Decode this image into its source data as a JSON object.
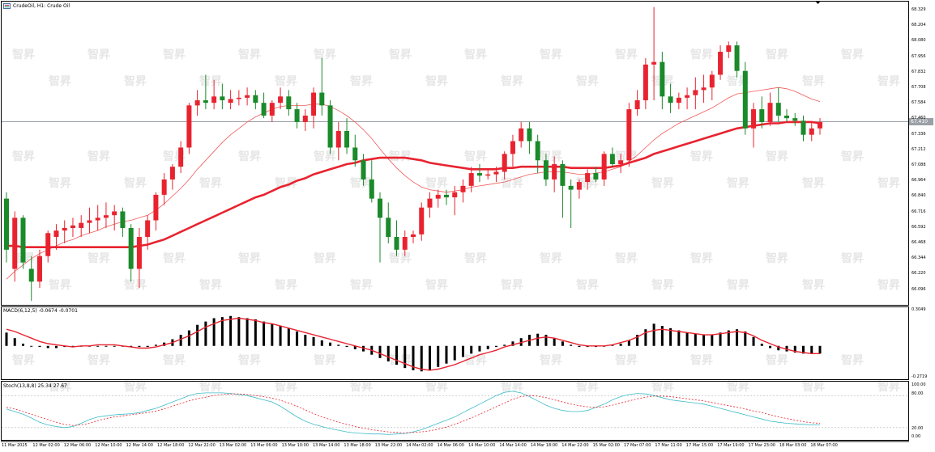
{
  "window": {
    "title": "CrudeOil, H1:  Crude Oil",
    "icon": "chart-window-icon",
    "current_price_tag": "67.410",
    "watermark_text": "智昇"
  },
  "panes": {
    "main": {
      "y_ticks": [
        "68.329",
        "68.204",
        "68.080",
        "67.956",
        "67.832",
        "67.708",
        "67.584",
        "67.460",
        "67.336",
        "67.212",
        "67.088",
        "66.964",
        "66.840",
        "66.716",
        "66.592",
        "66.468",
        "66.344",
        "66.220",
        "66.096"
      ]
    },
    "macd": {
      "label": "MACD(6,12,5) -0.0674 -0.0701",
      "y_ticks": [
        "0.3049",
        "-0.2719"
      ]
    },
    "stoch": {
      "label": "Stoch(13,8,8) 25.34 27.67",
      "y_ticks": [
        "100.00",
        "80.00",
        "20.00",
        "0.00"
      ]
    }
  },
  "time_axis": [
    "11 Mar 2025",
    "12 Mar 02:00",
    "12 Mar 06:00",
    "12 Mar 10:00",
    "12 Mar 14:00",
    "12 Mar 18:00",
    "12 Mar 22:00",
    "13 Mar 02:00",
    "13 Mar 06:00",
    "13 Mar 10:00",
    "13 Mar 14:00",
    "13 Mar 18:00",
    "13 Mar 22:00",
    "14 Mar 02:00",
    "14 Mar 06:00",
    "14 Mar 10:00",
    "14 Mar 14:00",
    "14 Mar 18:00",
    "14 Mar 22:00",
    "15 Mar 02:00",
    "17 Mar 07:00",
    "17 Mar 11:00",
    "17 Mar 15:00",
    "17 Mar 19:00",
    "17 Mar 23:00",
    "18 Mar 03:00",
    "18 Mar 07:00"
  ],
  "colors": {
    "bull": "#e8232f",
    "bear": "#1a8a2a",
    "ma_slow": "#e8232f",
    "ma_fast": "#f05a5a",
    "macd_hist": "#000000",
    "macd_signal": "#e8232f",
    "stoch_main": "#3cbcc8",
    "stoch_signal": "#e8232f",
    "grid": "#000000",
    "current_price_line": "#9aa0a6"
  },
  "chart_data": [
    {
      "type": "candlestick",
      "title": "CrudeOil, H1",
      "ylim": [
        66.05,
        68.38
      ],
      "ma_slow_period_label": "",
      "candles": [
        [
          66.85,
          66.9,
          66.35,
          66.45
        ],
        [
          66.3,
          66.75,
          66.2,
          66.7
        ],
        [
          66.7,
          66.72,
          66.3,
          66.35
        ],
        [
          66.3,
          66.4,
          66.05,
          66.2
        ],
        [
          66.2,
          66.45,
          66.15,
          66.4
        ],
        [
          66.4,
          66.6,
          66.35,
          66.58
        ],
        [
          66.55,
          66.65,
          66.45,
          66.6
        ],
        [
          66.6,
          66.68,
          66.5,
          66.62
        ],
        [
          66.62,
          66.7,
          66.55,
          66.64
        ],
        [
          66.62,
          66.72,
          66.55,
          66.66
        ],
        [
          66.66,
          66.78,
          66.58,
          66.68
        ],
        [
          66.68,
          66.8,
          66.6,
          66.7
        ],
        [
          66.7,
          66.82,
          66.62,
          66.72
        ],
        [
          66.72,
          66.8,
          66.6,
          66.75
        ],
        [
          66.75,
          66.78,
          66.55,
          66.62
        ],
        [
          66.62,
          66.65,
          66.2,
          66.3
        ],
        [
          66.3,
          66.62,
          66.15,
          66.55
        ],
        [
          66.55,
          66.72,
          66.45,
          66.68
        ],
        [
          66.68,
          66.9,
          66.6,
          66.88
        ],
        [
          66.88,
          67.05,
          66.8,
          67.0
        ],
        [
          67.0,
          67.12,
          66.92,
          67.1
        ],
        [
          67.1,
          67.3,
          67.05,
          67.25
        ],
        [
          67.25,
          67.6,
          67.2,
          67.58
        ],
        [
          67.58,
          67.7,
          67.5,
          67.62
        ],
        [
          67.62,
          67.82,
          67.55,
          67.6
        ],
        [
          67.6,
          67.78,
          67.55,
          67.65
        ],
        [
          67.65,
          67.75,
          67.55,
          67.62
        ],
        [
          67.6,
          67.7,
          67.55,
          67.63
        ],
        [
          67.63,
          67.7,
          67.58,
          67.64
        ],
        [
          67.64,
          67.72,
          67.58,
          67.66
        ],
        [
          67.66,
          67.7,
          67.55,
          67.6
        ],
        [
          67.6,
          67.68,
          67.48,
          67.5
        ],
        [
          67.5,
          67.62,
          67.45,
          67.6
        ],
        [
          67.6,
          67.72,
          67.55,
          67.65
        ],
        [
          67.65,
          67.7,
          67.5,
          67.55
        ],
        [
          67.55,
          67.6,
          67.4,
          67.45
        ],
        [
          67.45,
          67.55,
          67.38,
          67.5
        ],
        [
          67.5,
          67.72,
          67.4,
          67.68
        ],
        [
          67.68,
          67.95,
          67.5,
          67.58
        ],
        [
          67.58,
          67.62,
          67.2,
          67.25
        ],
        [
          67.25,
          67.45,
          67.15,
          67.38
        ],
        [
          67.38,
          67.48,
          67.2,
          67.25
        ],
        [
          67.25,
          67.35,
          67.1,
          67.15
        ],
        [
          67.15,
          67.2,
          66.95,
          67.0
        ],
        [
          67.0,
          67.15,
          66.82,
          66.85
        ],
        [
          66.85,
          66.9,
          66.35,
          66.7
        ],
        [
          66.7,
          66.82,
          66.5,
          66.55
        ],
        [
          66.55,
          66.68,
          66.4,
          66.45
        ],
        [
          66.45,
          66.6,
          66.4,
          66.55
        ],
        [
          66.55,
          66.6,
          66.5,
          66.57
        ],
        [
          66.57,
          66.82,
          66.52,
          66.78
        ],
        [
          66.78,
          66.9,
          66.7,
          66.85
        ],
        [
          66.85,
          66.92,
          66.78,
          66.88
        ],
        [
          66.88,
          66.92,
          66.8,
          66.86
        ],
        [
          66.86,
          66.95,
          66.72,
          66.9
        ],
        [
          66.9,
          67.0,
          66.82,
          66.95
        ],
        [
          66.95,
          67.1,
          66.9,
          67.05
        ],
        [
          67.05,
          67.12,
          66.98,
          67.03
        ],
        [
          67.03,
          67.08,
          67.0,
          67.04
        ],
        [
          67.04,
          67.1,
          66.98,
          67.06
        ],
        [
          67.06,
          67.22,
          67.0,
          67.2
        ],
        [
          67.2,
          67.35,
          67.1,
          67.3
        ],
        [
          67.3,
          67.45,
          67.25,
          67.4
        ],
        [
          67.4,
          67.45,
          67.2,
          67.3
        ],
        [
          67.3,
          67.35,
          67.05,
          67.15
        ],
        [
          67.15,
          67.2,
          66.95,
          67.0
        ],
        [
          67.0,
          67.18,
          66.9,
          67.12
        ],
        [
          67.12,
          67.15,
          66.7,
          66.95
        ],
        [
          66.95,
          67.0,
          66.62,
          66.92
        ],
        [
          66.92,
          67.0,
          66.85,
          66.98
        ],
        [
          66.98,
          67.08,
          66.92,
          67.05
        ],
        [
          67.05,
          67.1,
          66.98,
          67.0
        ],
        [
          67.0,
          67.22,
          66.95,
          67.2
        ],
        [
          67.2,
          67.25,
          67.1,
          67.12
        ],
        [
          67.12,
          67.2,
          67.05,
          67.15
        ],
        [
          67.15,
          67.6,
          67.1,
          67.55
        ],
        [
          67.55,
          67.7,
          67.5,
          67.62
        ],
        [
          67.62,
          67.95,
          67.55,
          67.9
        ],
        [
          67.9,
          68.35,
          67.62,
          67.92
        ],
        [
          67.92,
          68.0,
          67.55,
          67.65
        ],
        [
          67.65,
          67.75,
          67.52,
          67.6
        ],
        [
          67.6,
          67.68,
          67.55,
          67.64
        ],
        [
          67.64,
          67.72,
          67.55,
          67.66
        ],
        [
          67.66,
          67.8,
          67.55,
          67.7
        ],
        [
          67.7,
          67.82,
          67.6,
          67.72
        ],
        [
          67.72,
          67.85,
          67.62,
          67.82
        ],
        [
          67.82,
          68.05,
          67.78,
          68.0
        ],
        [
          68.0,
          68.08,
          67.95,
          68.05
        ],
        [
          68.05,
          68.08,
          67.8,
          67.85
        ],
        [
          67.85,
          67.92,
          67.35,
          67.4
        ],
        [
          67.4,
          67.6,
          67.25,
          67.55
        ],
        [
          67.55,
          67.65,
          67.4,
          67.45
        ],
        [
          67.45,
          67.68,
          67.42,
          67.6
        ],
        [
          67.6,
          67.72,
          67.45,
          67.5
        ],
        [
          67.5,
          67.55,
          67.45,
          67.48
        ],
        [
          67.48,
          67.52,
          67.42,
          67.46
        ],
        [
          67.46,
          67.5,
          67.3,
          67.35
        ],
        [
          67.35,
          67.45,
          67.3,
          67.4
        ],
        [
          67.4,
          67.48,
          67.35,
          67.45
        ]
      ],
      "ma_fast": [
        66.22,
        66.28,
        66.33,
        66.38,
        66.42,
        66.45,
        66.48,
        66.51,
        66.53,
        66.56,
        66.58,
        66.6,
        66.63,
        66.65,
        66.67,
        66.68,
        66.7,
        66.72,
        66.76,
        66.81,
        66.87,
        66.93,
        67.0,
        67.08,
        67.15,
        67.22,
        67.29,
        67.35,
        67.4,
        67.45,
        67.49,
        67.52,
        67.55,
        67.57,
        67.58,
        67.58,
        67.58,
        67.59,
        67.59,
        67.57,
        67.54,
        67.5,
        67.45,
        67.39,
        67.32,
        67.24,
        67.16,
        67.09,
        67.03,
        66.98,
        66.94,
        66.92,
        66.91,
        66.9,
        66.91,
        66.92,
        66.94,
        66.95,
        66.96,
        66.97,
        66.98,
        67.0,
        67.02,
        67.04,
        67.05,
        67.06,
        67.06,
        67.06,
        67.05,
        67.04,
        67.04,
        67.05,
        67.06,
        67.08,
        67.1,
        67.14,
        67.19,
        67.25,
        67.31,
        67.36,
        67.4,
        67.44,
        67.47,
        67.5,
        67.53,
        67.56,
        67.6,
        67.64,
        67.67,
        67.68,
        67.69,
        67.7,
        67.71,
        67.72,
        67.71,
        67.69,
        67.66,
        67.63,
        67.61
      ],
      "ma_slow": [
        66.48,
        66.48,
        66.47,
        66.47,
        66.47,
        66.47,
        66.47,
        66.47,
        66.47,
        66.47,
        66.47,
        66.47,
        66.47,
        66.47,
        66.47,
        66.47,
        66.48,
        66.49,
        66.51,
        66.53,
        66.56,
        66.59,
        66.62,
        66.65,
        66.68,
        66.71,
        66.74,
        66.77,
        66.8,
        66.83,
        66.86,
        66.88,
        66.91,
        66.94,
        66.96,
        66.99,
        67.01,
        67.04,
        67.06,
        67.08,
        67.1,
        67.12,
        67.13,
        67.15,
        67.16,
        67.17,
        67.17,
        67.17,
        67.17,
        67.16,
        67.15,
        67.13,
        67.12,
        67.11,
        67.1,
        67.09,
        67.08,
        67.08,
        67.08,
        67.08,
        67.09,
        67.09,
        67.1,
        67.1,
        67.1,
        67.1,
        67.1,
        67.1,
        67.09,
        67.09,
        67.09,
        67.09,
        67.09,
        67.1,
        67.11,
        67.13,
        67.15,
        67.17,
        67.2,
        67.22,
        67.24,
        67.26,
        67.28,
        67.3,
        67.32,
        67.34,
        67.36,
        67.38,
        67.4,
        67.41,
        67.42,
        67.43,
        67.44,
        67.44,
        67.45,
        67.45,
        67.45,
        67.45,
        67.44
      ]
    },
    {
      "type": "bar",
      "title": "MACD(6,12,5)",
      "ylim": [
        -0.2719,
        0.3049
      ],
      "histogram": [
        0.12,
        0.07,
        0.02,
        0.0,
        -0.01,
        -0.02,
        -0.02,
        -0.01,
        0.0,
        0.0,
        0.0,
        0.0,
        0.0,
        0.0,
        0.0,
        -0.01,
        -0.01,
        -0.01,
        0.01,
        0.03,
        0.06,
        0.1,
        0.14,
        0.19,
        0.22,
        0.25,
        0.26,
        0.27,
        0.26,
        0.25,
        0.24,
        0.22,
        0.2,
        0.18,
        0.16,
        0.13,
        0.1,
        0.08,
        0.05,
        0.03,
        0.01,
        -0.01,
        -0.03,
        -0.05,
        -0.08,
        -0.11,
        -0.14,
        -0.17,
        -0.2,
        -0.22,
        -0.23,
        -0.22,
        -0.19,
        -0.16,
        -0.13,
        -0.1,
        -0.07,
        -0.05,
        -0.03,
        -0.01,
        0.01,
        0.04,
        0.07,
        0.1,
        0.11,
        0.1,
        0.07,
        0.04,
        0.01,
        -0.01,
        -0.01,
        -0.01,
        0.0,
        0.01,
        0.02,
        0.05,
        0.1,
        0.15,
        0.2,
        0.18,
        0.16,
        0.14,
        0.12,
        0.11,
        0.1,
        0.1,
        0.12,
        0.14,
        0.15,
        0.13,
        0.08,
        0.02,
        -0.02,
        -0.04,
        -0.05,
        -0.06,
        -0.07,
        -0.07,
        -0.07
      ],
      "signal": [
        0.15,
        0.13,
        0.1,
        0.07,
        0.04,
        0.02,
        0.01,
        0.0,
        -0.01,
        0.0,
        0.0,
        0.01,
        0.01,
        0.01,
        0.0,
        -0.01,
        -0.02,
        -0.02,
        -0.01,
        0.01,
        0.03,
        0.06,
        0.09,
        0.13,
        0.17,
        0.2,
        0.23,
        0.24,
        0.25,
        0.24,
        0.23,
        0.21,
        0.2,
        0.18,
        0.16,
        0.14,
        0.12,
        0.1,
        0.08,
        0.06,
        0.04,
        0.02,
        0.0,
        -0.02,
        -0.04,
        -0.07,
        -0.1,
        -0.13,
        -0.16,
        -0.19,
        -0.21,
        -0.22,
        -0.21,
        -0.19,
        -0.17,
        -0.14,
        -0.11,
        -0.08,
        -0.06,
        -0.04,
        -0.01,
        0.01,
        0.03,
        0.05,
        0.07,
        0.08,
        0.07,
        0.05,
        0.03,
        0.01,
        0.0,
        0.0,
        0.0,
        0.01,
        0.03,
        0.05,
        0.08,
        0.12,
        0.14,
        0.15,
        0.14,
        0.13,
        0.12,
        0.11,
        0.1,
        0.1,
        0.11,
        0.12,
        0.13,
        0.12,
        0.09,
        0.05,
        0.02,
        -0.01,
        -0.03,
        -0.05,
        -0.06,
        -0.07,
        -0.07
      ]
    },
    {
      "type": "line",
      "title": "Stoch(13,8,8)",
      "ylim": [
        0,
        100
      ],
      "levels": [
        20,
        80
      ],
      "main": [
        55,
        50,
        45,
        38,
        30,
        25,
        22,
        20,
        22,
        28,
        35,
        40,
        42,
        44,
        45,
        46,
        48,
        52,
        56,
        62,
        68,
        74,
        80,
        84,
        85,
        85,
        85,
        84,
        82,
        80,
        76,
        72,
        68,
        60,
        50,
        40,
        32,
        26,
        22,
        18,
        15,
        12,
        10,
        9,
        8,
        8,
        7,
        8,
        9,
        12,
        16,
        22,
        28,
        34,
        40,
        48,
        56,
        64,
        72,
        80,
        86,
        88,
        85,
        78,
        70,
        62,
        56,
        52,
        50,
        50,
        52,
        58,
        64,
        72,
        78,
        82,
        84,
        83,
        80,
        76,
        72,
        70,
        68,
        66,
        64,
        60,
        56,
        52,
        48,
        44,
        40,
        36,
        32,
        30,
        28,
        27,
        26,
        25,
        25
      ],
      "signal": [
        58,
        55,
        50,
        45,
        40,
        35,
        30,
        26,
        24,
        25,
        28,
        33,
        37,
        40,
        42,
        44,
        46,
        48,
        51,
        55,
        60,
        65,
        70,
        74,
        77,
        80,
        82,
        83,
        83,
        82,
        80,
        78,
        75,
        71,
        66,
        60,
        53,
        46,
        40,
        35,
        30,
        26,
        22,
        19,
        16,
        14,
        12,
        11,
        10,
        11,
        12,
        14,
        17,
        21,
        26,
        32,
        38,
        45,
        52,
        59,
        66,
        73,
        78,
        80,
        79,
        76,
        72,
        68,
        64,
        61,
        59,
        58,
        59,
        62,
        66,
        70,
        74,
        77,
        79,
        79,
        78,
        76,
        74,
        72,
        70,
        67,
        64,
        61,
        58,
        55,
        51,
        48,
        44,
        40,
        37,
        34,
        31,
        29,
        28
      ]
    }
  ]
}
